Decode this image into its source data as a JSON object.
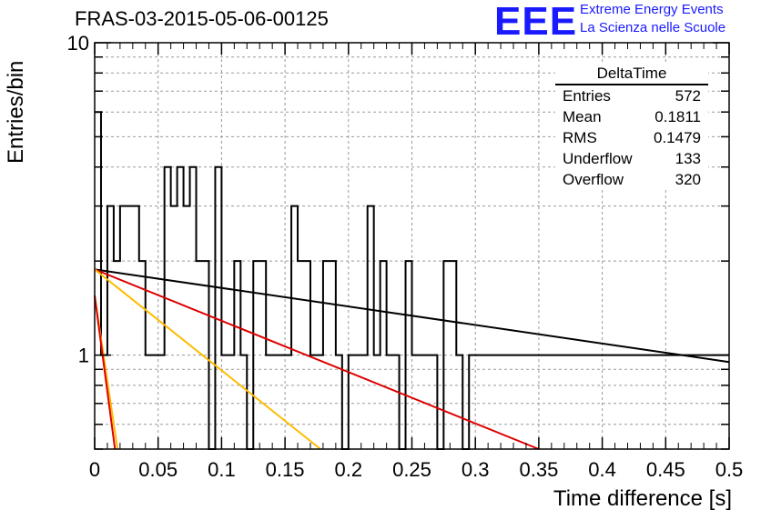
{
  "title": "FRAS-03-2015-05-06-00125",
  "brand": {
    "logo": "EEE",
    "line1": "Extreme Energy Events",
    "line2": "La Scienza nelle Scuole",
    "color": "#1a1aff"
  },
  "stats": {
    "title": "DeltaTime",
    "rows": [
      {
        "label": "Entries",
        "value": "572"
      },
      {
        "label": "Mean",
        "value": "0.1811"
      },
      {
        "label": "RMS",
        "value": "0.1479"
      },
      {
        "label": "Underflow",
        "value": "133"
      },
      {
        "label": "Overflow",
        "value": "320"
      }
    ]
  },
  "chart_data": {
    "type": "histogram",
    "xlabel": "Time difference [s]",
    "ylabel": "Entries/bin",
    "xlim": [
      0,
      0.5
    ],
    "ylim": [
      0.5,
      10
    ],
    "y_scale": "log",
    "x_ticks": [
      "0",
      "0.05",
      "0.1",
      "0.15",
      "0.2",
      "0.25",
      "0.3",
      "0.35",
      "0.4",
      "0.45",
      "0.5"
    ],
    "y_ticks": [
      "1",
      "10"
    ],
    "grid": true,
    "bin_width": 0.005,
    "histogram_values": [
      6,
      1,
      3,
      2,
      3,
      3,
      3,
      2,
      1,
      1,
      1,
      4,
      3,
      4,
      3,
      4,
      2,
      2,
      0,
      4,
      1,
      1,
      2,
      1,
      0,
      2,
      2,
      1,
      1,
      1,
      1,
      3,
      2,
      2,
      1,
      1,
      2,
      2,
      1,
      0,
      1,
      1,
      1,
      3,
      1,
      2,
      1,
      1,
      0,
      2,
      1,
      1,
      1,
      1,
      0,
      2,
      2,
      1,
      0,
      1,
      1,
      1,
      1,
      1,
      1,
      1,
      1,
      1,
      1,
      1,
      1,
      1,
      1,
      1,
      1,
      1,
      1,
      1,
      1,
      1,
      1,
      1,
      1,
      1,
      1,
      1,
      1,
      1,
      1,
      1,
      1,
      1,
      1,
      1,
      1,
      1,
      1,
      1,
      1,
      1
    ],
    "fit_lines": [
      {
        "name": "black",
        "color": "#000000",
        "points": [
          [
            0.0,
            1.88
          ],
          [
            0.5,
            0.95
          ]
        ]
      },
      {
        "name": "red",
        "color": "#dd0000",
        "points": [
          [
            0.0,
            1.88
          ],
          [
            0.35,
            0.5
          ]
        ]
      },
      {
        "name": "orange",
        "color": "#ffbb00",
        "points": [
          [
            0.0,
            1.88
          ],
          [
            0.178,
            0.5
          ]
        ]
      },
      {
        "name": "yellow-steep",
        "color": "#ffbb00",
        "points": [
          [
            0.0,
            1.55
          ],
          [
            0.018,
            0.5
          ]
        ]
      },
      {
        "name": "red-steep",
        "color": "#dd0000",
        "points": [
          [
            0.0,
            1.55
          ],
          [
            0.016,
            0.5
          ]
        ]
      }
    ]
  }
}
